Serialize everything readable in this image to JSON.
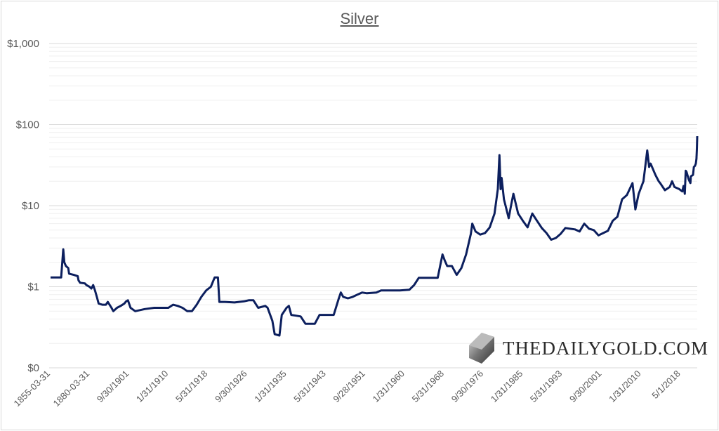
{
  "chart_data": {
    "type": "line",
    "title": "Silver",
    "xlabel": "",
    "ylabel": "",
    "y_scale": "log",
    "ylim": [
      0.1,
      1000
    ],
    "y_tick_labels": [
      "$0",
      "$1",
      "$10",
      "$100",
      "$1,000"
    ],
    "y_tick_values": [
      0.1,
      1,
      10,
      100,
      1000
    ],
    "x_tick_labels": [
      "1855-03-31",
      "1880-03-31",
      "9/30/1901",
      "1/31/1910",
      "5/31/1918",
      "9/30/1926",
      "1/31/1935",
      "5/31/1943",
      "9/28/1951",
      "1/31/1960",
      "5/31/1968",
      "9/30/1976",
      "1/31/1985",
      "5/31/1993",
      "9/30/2001",
      "1/31/2010",
      "5/1/2018"
    ],
    "x_tick_years": [
      1855.25,
      1880.25,
      1901.75,
      1910.08,
      1918.42,
      1926.75,
      1935.08,
      1943.42,
      1951.75,
      1960.08,
      1968.42,
      1976.75,
      1985.08,
      1993.42,
      2001.75,
      2010.08,
      2018.33
    ],
    "grid": "horizontal major and minor",
    "legend": "none",
    "line_color": "#0c1f5e",
    "series": [
      {
        "points": [
          [
            1855.25,
            1.3
          ],
          [
            1862,
            1.3
          ],
          [
            1862.5,
            1.8
          ],
          [
            1863.3,
            2.9
          ],
          [
            1864,
            2.0
          ],
          [
            1865,
            1.8
          ],
          [
            1866.5,
            1.7
          ],
          [
            1867,
            1.45
          ],
          [
            1870,
            1.4
          ],
          [
            1872.5,
            1.35
          ],
          [
            1873,
            1.2
          ],
          [
            1874,
            1.12
          ],
          [
            1877,
            1.1
          ],
          [
            1878,
            1.05
          ],
          [
            1880,
            1.0
          ],
          [
            1881,
            0.95
          ],
          [
            1882,
            1.05
          ],
          [
            1883,
            0.9
          ],
          [
            1884,
            0.75
          ],
          [
            1885,
            0.62
          ],
          [
            1887,
            0.6
          ],
          [
            1889,
            0.6
          ],
          [
            1890,
            0.65
          ],
          [
            1892,
            0.55
          ],
          [
            1893,
            0.5
          ],
          [
            1895,
            0.55
          ],
          [
            1897,
            0.58
          ],
          [
            1899,
            0.62
          ],
          [
            1900,
            0.66
          ],
          [
            1901,
            0.68
          ],
          [
            1902,
            0.55
          ],
          [
            1903,
            0.5
          ],
          [
            1905,
            0.53
          ],
          [
            1907,
            0.55
          ],
          [
            1909,
            0.55
          ],
          [
            1910,
            0.55
          ],
          [
            1911,
            0.6
          ],
          [
            1912,
            0.58
          ],
          [
            1913,
            0.55
          ],
          [
            1914,
            0.5
          ],
          [
            1915,
            0.5
          ],
          [
            1916,
            0.6
          ],
          [
            1917,
            0.75
          ],
          [
            1918,
            0.9
          ],
          [
            1919,
            1.0
          ],
          [
            1919.8,
            1.3
          ],
          [
            1920.5,
            1.3
          ],
          [
            1920.8,
            0.65
          ],
          [
            1922,
            0.65
          ],
          [
            1924,
            0.64
          ],
          [
            1926,
            0.66
          ],
          [
            1927,
            0.68
          ],
          [
            1928,
            0.68
          ],
          [
            1929,
            0.55
          ],
          [
            1930.5,
            0.58
          ],
          [
            1931,
            0.55
          ],
          [
            1932,
            0.38
          ],
          [
            1932.5,
            0.26
          ],
          [
            1933.5,
            0.25
          ],
          [
            1934,
            0.45
          ],
          [
            1935,
            0.55
          ],
          [
            1935.5,
            0.58
          ],
          [
            1936,
            0.45
          ],
          [
            1937,
            0.44
          ],
          [
            1938,
            0.43
          ],
          [
            1939,
            0.35
          ],
          [
            1941,
            0.35
          ],
          [
            1942,
            0.45
          ],
          [
            1945,
            0.45
          ],
          [
            1946,
            0.7
          ],
          [
            1946.5,
            0.85
          ],
          [
            1947,
            0.75
          ],
          [
            1948,
            0.72
          ],
          [
            1949,
            0.75
          ],
          [
            1950,
            0.8
          ],
          [
            1951,
            0.85
          ],
          [
            1952,
            0.83
          ],
          [
            1954,
            0.85
          ],
          [
            1955,
            0.9
          ],
          [
            1959,
            0.9
          ],
          [
            1961,
            0.92
          ],
          [
            1962,
            1.05
          ],
          [
            1963,
            1.29
          ],
          [
            1967,
            1.29
          ],
          [
            1967.5,
            1.8
          ],
          [
            1968,
            2.5
          ],
          [
            1968.5,
            2.1
          ],
          [
            1969,
            1.8
          ],
          [
            1970,
            1.8
          ],
          [
            1971,
            1.4
          ],
          [
            1972,
            1.7
          ],
          [
            1973,
            2.5
          ],
          [
            1974,
            4.5
          ],
          [
            1974.3,
            6.0
          ],
          [
            1975,
            4.8
          ],
          [
            1976,
            4.4
          ],
          [
            1977,
            4.6
          ],
          [
            1978,
            5.4
          ],
          [
            1979,
            8
          ],
          [
            1979.7,
            16
          ],
          [
            1980.05,
            42
          ],
          [
            1980.3,
            16
          ],
          [
            1980.5,
            22
          ],
          [
            1981,
            12
          ],
          [
            1982,
            7
          ],
          [
            1982.5,
            10
          ],
          [
            1983,
            14
          ],
          [
            1984,
            8
          ],
          [
            1985,
            6.5
          ],
          [
            1986,
            5.4
          ],
          [
            1987,
            8
          ],
          [
            1988,
            6.5
          ],
          [
            1989,
            5.3
          ],
          [
            1990,
            4.6
          ],
          [
            1991,
            3.8
          ],
          [
            1992,
            4.0
          ],
          [
            1993,
            4.5
          ],
          [
            1994,
            5.3
          ],
          [
            1995,
            5.2
          ],
          [
            1996,
            5.1
          ],
          [
            1997,
            4.8
          ],
          [
            1998,
            6.0
          ],
          [
            1999,
            5.2
          ],
          [
            2000,
            5.0
          ],
          [
            2001,
            4.3
          ],
          [
            2002,
            4.6
          ],
          [
            2003,
            4.9
          ],
          [
            2004,
            6.5
          ],
          [
            2005,
            7.3
          ],
          [
            2006,
            12
          ],
          [
            2007,
            13.5
          ],
          [
            2008.2,
            19
          ],
          [
            2008.8,
            9
          ],
          [
            2009.5,
            14
          ],
          [
            2010.5,
            20
          ],
          [
            2011.3,
            48
          ],
          [
            2011.7,
            30
          ],
          [
            2012,
            33
          ],
          [
            2013,
            24
          ],
          [
            2013.7,
            20
          ],
          [
            2014,
            19
          ],
          [
            2015,
            15.5
          ],
          [
            2016,
            17
          ],
          [
            2016.5,
            20
          ],
          [
            2017,
            17
          ],
          [
            2018,
            16
          ],
          [
            2019,
            15
          ],
          [
            2019.6,
            17.5
          ],
          [
            2020.2,
            14
          ],
          [
            2020.6,
            27
          ],
          [
            2021,
            26
          ],
          [
            2022,
            21
          ],
          [
            2022.8,
            19
          ],
          [
            2023,
            23
          ],
          [
            2024,
            24
          ],
          [
            2024.4,
            30
          ],
          [
            2024.9,
            31
          ],
          [
            2025.3,
            33
          ],
          [
            2025.6,
            38
          ],
          [
            2025.8,
            50
          ],
          [
            2025.95,
            72
          ]
        ]
      }
    ]
  },
  "watermark": {
    "text": "THEDAILYGOLD.COM"
  }
}
